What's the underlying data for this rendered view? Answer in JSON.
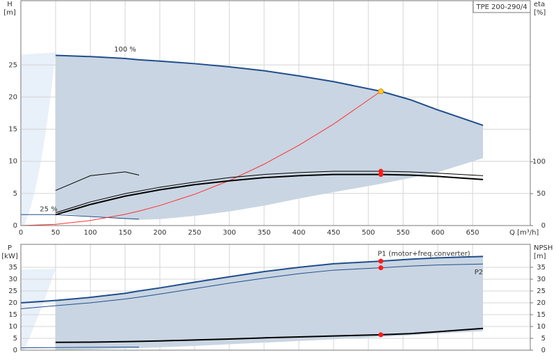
{
  "chart_data": [
    {
      "type": "line",
      "title": "TPE 200-290/4",
      "ylabel": "H",
      "yunit": "[m]",
      "y2label": "eta",
      "y2unit": "[%]",
      "xlabel": "Q [m³/h]",
      "xlim": [
        0,
        733
      ],
      "xticks": [
        0,
        50,
        100,
        150,
        200,
        250,
        300,
        350,
        400,
        450,
        500,
        550,
        600,
        650
      ],
      "ylim": [
        0,
        35
      ],
      "yticks": [
        0,
        5,
        10,
        15,
        20,
        25
      ],
      "y2lim": [
        0,
        352
      ],
      "y2ticks": [
        0,
        50,
        100
      ],
      "grid": true,
      "x": [
        0,
        50,
        100,
        150,
        170,
        200,
        250,
        300,
        350,
        400,
        450,
        518,
        560,
        600,
        665
      ],
      "band_lower": [
        null,
        2.0,
        1.4,
        1.0,
        0.9,
        1.0,
        1.5,
        2.2,
        3.1,
        4.2,
        5.2,
        6.5,
        7.4,
        8.3,
        10.5
      ],
      "band_color": "#c9d5e2",
      "series": [
        {
          "name": "100 %",
          "color": "#1f4e8c",
          "width": 2,
          "values": [
            null,
            26.5,
            26.3,
            26.0,
            25.8,
            25.6,
            25.2,
            24.7,
            24.1,
            23.3,
            22.4,
            20.9,
            19.6,
            18.0,
            15.6
          ]
        },
        {
          "name": "25 %",
          "color": "#1f4e8c",
          "width": 1,
          "values": [
            1.7,
            1.7,
            1.4,
            1.1,
            1.0,
            null,
            null,
            null,
            null,
            null,
            null,
            null,
            null,
            null,
            null
          ]
        },
        {
          "color": "#ff3030",
          "width": 1,
          "values": [
            0,
            0.19,
            0.78,
            1.75,
            2.25,
            3.12,
            4.87,
            7.0,
            9.55,
            12.5,
            15.8,
            20.9,
            null,
            null,
            null
          ]
        },
        {
          "color": "#000000",
          "width": 1,
          "axis": "y2",
          "values": [
            null,
            20,
            37,
            50,
            54,
            60,
            68,
            75,
            80,
            83,
            85,
            85,
            84,
            82,
            78
          ]
        },
        {
          "color": "#000000",
          "width": 2,
          "axis": "y2",
          "values": [
            null,
            17,
            33,
            46,
            50,
            56,
            64,
            70,
            75,
            78,
            80,
            80,
            79,
            77,
            72
          ]
        },
        {
          "color": "#000000",
          "width": 1,
          "axis": "y2",
          "values": [
            null,
            55,
            78,
            84,
            79,
            null,
            null,
            null,
            null,
            null,
            null,
            null,
            null,
            null,
            null
          ]
        }
      ],
      "markers": [
        {
          "x": 518,
          "y": 20.9,
          "color": "#ffd21a"
        },
        {
          "x": 518,
          "y": 85,
          "color": "#ff1a1a",
          "axis": "y2"
        },
        {
          "x": 518,
          "y": 80,
          "color": "#ff1a1a",
          "axis": "y2"
        }
      ]
    },
    {
      "type": "line",
      "ylabel": "P",
      "yunit": "[kW]",
      "y2label": "NPSH",
      "y2unit": "[m]",
      "xlim": [
        0,
        733
      ],
      "ylim": [
        0,
        44.7
      ],
      "yticks": [
        0,
        5,
        10,
        15,
        20,
        25,
        30,
        35
      ],
      "y2lim": [
        0,
        44.7
      ],
      "y2ticks": [
        0,
        5,
        10,
        15,
        20,
        25,
        30,
        35
      ],
      "grid": true,
      "x": [
        0,
        50,
        100,
        150,
        170,
        200,
        250,
        300,
        350,
        400,
        450,
        518,
        560,
        600,
        665
      ],
      "band_lower": [
        null,
        0,
        0.3,
        0.7,
        0.9,
        1.2,
        1.8,
        2.5,
        3.2,
        3.9,
        4.6,
        5.6,
        6.3,
        7.0,
        8.0
      ],
      "band_color": "#c9d5e2",
      "series": [
        {
          "name": "P1 (motor+freq.converter)",
          "color": "#1f4e8c",
          "width": 2,
          "values": [
            20,
            21,
            22.3,
            24,
            25,
            26.3,
            28.7,
            31,
            33.2,
            35,
            36.5,
            37.6,
            38.4,
            39,
            39.6
          ]
        },
        {
          "name": "P2",
          "color": "#1f4e8c",
          "width": 1,
          "values": [
            17.5,
            18.8,
            20,
            21.6,
            22.4,
            23.7,
            26,
            28.3,
            30.4,
            32.3,
            33.8,
            34.8,
            35.5,
            36.0,
            36.4
          ]
        },
        {
          "color": "#000000",
          "width": 2,
          "axis": "y2",
          "values": [
            null,
            3.3,
            3.4,
            3.6,
            3.7,
            3.9,
            4.3,
            4.7,
            5.2,
            5.6,
            6.0,
            6.5,
            7.0,
            7.8,
            9.2
          ]
        },
        {
          "color": "#1f4e8c",
          "width": 1,
          "values": [
            1.0,
            1.1,
            1.2,
            1.3,
            1.3,
            null,
            null,
            null,
            null,
            null,
            null,
            null,
            null,
            null,
            null
          ]
        }
      ],
      "markers": [
        {
          "x": 518,
          "y": 37.6,
          "color": "#ff1a1a"
        },
        {
          "x": 518,
          "y": 34.8,
          "color": "#ff1a1a"
        },
        {
          "x": 518,
          "y": 6.5,
          "color": "#ff1a1a",
          "axis": "y2"
        }
      ]
    }
  ]
}
